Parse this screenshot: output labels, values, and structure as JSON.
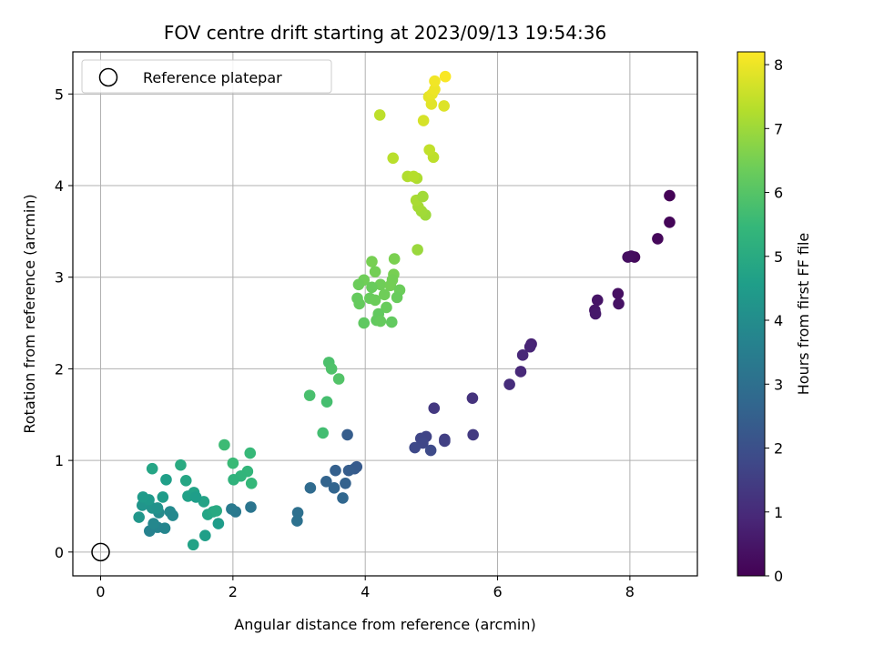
{
  "chart_data": {
    "type": "scatter",
    "title": "FOV centre drift starting at 2023/09/13 19:54:36",
    "xlabel": "Angular distance from reference (arcmin)",
    "ylabel": "Rotation from reference (arcmin)",
    "xlim": [
      -0.42,
      9.02
    ],
    "ylim": [
      -0.26,
      5.46
    ],
    "xticks": [
      0,
      2,
      4,
      6,
      8
    ],
    "yticks": [
      0,
      1,
      2,
      3,
      4,
      5
    ],
    "grid": true,
    "legend": {
      "position": "top-left",
      "entries": [
        "Reference platepar"
      ]
    },
    "reference_point": {
      "x": 0,
      "y": 0,
      "label": "Reference platepar"
    },
    "colorbar": {
      "label": "Hours from first FF file",
      "colormap": "viridis",
      "range": [
        0,
        8.2
      ],
      "ticks": [
        0,
        1,
        2,
        3,
        4,
        5,
        6,
        7,
        8
      ]
    },
    "points": [
      {
        "x": 8.6,
        "y": 3.89,
        "c": 0.05
      },
      {
        "x": 8.6,
        "y": 3.6,
        "c": 0.1
      },
      {
        "x": 8.42,
        "y": 3.42,
        "c": 0.15
      },
      {
        "x": 8.07,
        "y": 3.22,
        "c": 0.2
      },
      {
        "x": 8.02,
        "y": 3.23,
        "c": 0.25
      },
      {
        "x": 7.97,
        "y": 3.22,
        "c": 0.3
      },
      {
        "x": 7.82,
        "y": 2.82,
        "c": 0.35
      },
      {
        "x": 7.83,
        "y": 2.71,
        "c": 0.4
      },
      {
        "x": 7.51,
        "y": 2.75,
        "c": 0.45
      },
      {
        "x": 7.47,
        "y": 2.64,
        "c": 0.5
      },
      {
        "x": 7.48,
        "y": 2.6,
        "c": 0.55
      },
      {
        "x": 6.51,
        "y": 2.27,
        "c": 0.8
      },
      {
        "x": 6.49,
        "y": 2.24,
        "c": 0.85
      },
      {
        "x": 6.38,
        "y": 2.15,
        "c": 0.9
      },
      {
        "x": 6.35,
        "y": 1.97,
        "c": 0.95
      },
      {
        "x": 6.18,
        "y": 1.83,
        "c": 1.05
      },
      {
        "x": 5.62,
        "y": 1.68,
        "c": 1.2
      },
      {
        "x": 5.04,
        "y": 1.57,
        "c": 1.35
      },
      {
        "x": 5.63,
        "y": 1.28,
        "c": 1.4
      },
      {
        "x": 5.2,
        "y": 1.23,
        "c": 1.5
      },
      {
        "x": 5.2,
        "y": 1.21,
        "c": 1.55
      },
      {
        "x": 4.92,
        "y": 1.26,
        "c": 1.65
      },
      {
        "x": 4.84,
        "y": 1.24,
        "c": 1.7
      },
      {
        "x": 4.87,
        "y": 1.19,
        "c": 1.75
      },
      {
        "x": 4.75,
        "y": 1.14,
        "c": 1.8
      },
      {
        "x": 4.99,
        "y": 1.11,
        "c": 1.85
      },
      {
        "x": 3.73,
        "y": 1.28,
        "c": 2.4
      },
      {
        "x": 3.87,
        "y": 0.93,
        "c": 2.3
      },
      {
        "x": 3.84,
        "y": 0.91,
        "c": 2.35
      },
      {
        "x": 3.75,
        "y": 0.89,
        "c": 2.4
      },
      {
        "x": 3.55,
        "y": 0.89,
        "c": 2.5
      },
      {
        "x": 3.7,
        "y": 0.75,
        "c": 2.55
      },
      {
        "x": 3.41,
        "y": 0.77,
        "c": 2.6
      },
      {
        "x": 3.53,
        "y": 0.7,
        "c": 2.65
      },
      {
        "x": 3.66,
        "y": 0.59,
        "c": 2.7
      },
      {
        "x": 3.17,
        "y": 0.7,
        "c": 2.85
      },
      {
        "x": 2.98,
        "y": 0.43,
        "c": 3.0
      },
      {
        "x": 2.97,
        "y": 0.34,
        "c": 3.05
      },
      {
        "x": 2.27,
        "y": 0.49,
        "c": 3.2
      },
      {
        "x": 2.04,
        "y": 0.44,
        "c": 3.3
      },
      {
        "x": 1.98,
        "y": 0.47,
        "c": 3.35
      },
      {
        "x": 1.4,
        "y": 0.08,
        "c": 4.7
      },
      {
        "x": 1.58,
        "y": 0.18,
        "c": 4.6
      },
      {
        "x": 1.78,
        "y": 0.31,
        "c": 4.5
      },
      {
        "x": 1.62,
        "y": 0.41,
        "c": 4.8
      },
      {
        "x": 1.7,
        "y": 0.44,
        "c": 4.9
      },
      {
        "x": 1.75,
        "y": 0.45,
        "c": 4.95
      },
      {
        "x": 1.56,
        "y": 0.55,
        "c": 4.75
      },
      {
        "x": 1.41,
        "y": 0.65,
        "c": 4.7
      },
      {
        "x": 1.32,
        "y": 0.61,
        "c": 4.65
      },
      {
        "x": 1.44,
        "y": 0.6,
        "c": 4.55
      },
      {
        "x": 1.29,
        "y": 0.78,
        "c": 4.85
      },
      {
        "x": 1.21,
        "y": 0.95,
        "c": 5.0
      },
      {
        "x": 0.97,
        "y": 0.26,
        "c": 3.75
      },
      {
        "x": 0.86,
        "y": 0.27,
        "c": 3.7
      },
      {
        "x": 0.74,
        "y": 0.23,
        "c": 3.65
      },
      {
        "x": 0.8,
        "y": 0.31,
        "c": 3.8
      },
      {
        "x": 0.88,
        "y": 0.43,
        "c": 3.95
      },
      {
        "x": 1.05,
        "y": 0.44,
        "c": 3.9
      },
      {
        "x": 1.09,
        "y": 0.4,
        "c": 3.85
      },
      {
        "x": 0.58,
        "y": 0.38,
        "c": 4.3
      },
      {
        "x": 0.63,
        "y": 0.51,
        "c": 4.25
      },
      {
        "x": 0.78,
        "y": 0.48,
        "c": 4.2
      },
      {
        "x": 0.86,
        "y": 0.48,
        "c": 4.15
      },
      {
        "x": 0.73,
        "y": 0.57,
        "c": 4.4
      },
      {
        "x": 0.64,
        "y": 0.6,
        "c": 4.45
      },
      {
        "x": 0.94,
        "y": 0.6,
        "c": 4.5
      },
      {
        "x": 0.99,
        "y": 0.79,
        "c": 4.6
      },
      {
        "x": 0.78,
        "y": 0.91,
        "c": 4.8
      },
      {
        "x": 2.26,
        "y": 1.08,
        "c": 5.5
      },
      {
        "x": 2.28,
        "y": 0.75,
        "c": 5.45
      },
      {
        "x": 2.22,
        "y": 0.88,
        "c": 5.4
      },
      {
        "x": 2.12,
        "y": 0.83,
        "c": 5.35
      },
      {
        "x": 2.01,
        "y": 0.79,
        "c": 5.3
      },
      {
        "x": 2.0,
        "y": 0.97,
        "c": 5.55
      },
      {
        "x": 1.87,
        "y": 1.17,
        "c": 5.6
      },
      {
        "x": 3.45,
        "y": 2.07,
        "c": 5.85
      },
      {
        "x": 3.49,
        "y": 2.0,
        "c": 5.9
      },
      {
        "x": 3.6,
        "y": 1.89,
        "c": 5.95
      },
      {
        "x": 3.16,
        "y": 1.71,
        "c": 5.8
      },
      {
        "x": 3.42,
        "y": 1.64,
        "c": 5.75
      },
      {
        "x": 3.36,
        "y": 1.3,
        "c": 5.7
      },
      {
        "x": 4.1,
        "y": 3.17,
        "c": 6.5
      },
      {
        "x": 4.44,
        "y": 3.2,
        "c": 6.55
      },
      {
        "x": 4.15,
        "y": 3.06,
        "c": 6.45
      },
      {
        "x": 4.43,
        "y": 3.03,
        "c": 6.5
      },
      {
        "x": 4.41,
        "y": 2.97,
        "c": 6.45
      },
      {
        "x": 3.98,
        "y": 2.97,
        "c": 6.4
      },
      {
        "x": 3.9,
        "y": 2.92,
        "c": 6.35
      },
      {
        "x": 4.23,
        "y": 2.92,
        "c": 6.4
      },
      {
        "x": 4.38,
        "y": 2.91,
        "c": 6.45
      },
      {
        "x": 4.1,
        "y": 2.89,
        "c": 6.3
      },
      {
        "x": 4.52,
        "y": 2.86,
        "c": 6.35
      },
      {
        "x": 4.29,
        "y": 2.81,
        "c": 6.4
      },
      {
        "x": 4.48,
        "y": 2.78,
        "c": 6.3
      },
      {
        "x": 3.88,
        "y": 2.77,
        "c": 6.25
      },
      {
        "x": 4.07,
        "y": 2.77,
        "c": 6.3
      },
      {
        "x": 4.15,
        "y": 2.75,
        "c": 6.35
      },
      {
        "x": 3.91,
        "y": 2.71,
        "c": 6.25
      },
      {
        "x": 4.32,
        "y": 2.67,
        "c": 6.3
      },
      {
        "x": 4.2,
        "y": 2.6,
        "c": 6.2
      },
      {
        "x": 4.17,
        "y": 2.53,
        "c": 6.2
      },
      {
        "x": 4.23,
        "y": 2.52,
        "c": 6.25
      },
      {
        "x": 3.98,
        "y": 2.5,
        "c": 6.15
      },
      {
        "x": 4.4,
        "y": 2.51,
        "c": 6.2
      },
      {
        "x": 4.79,
        "y": 3.3,
        "c": 6.95
      },
      {
        "x": 4.91,
        "y": 3.68,
        "c": 7.0
      },
      {
        "x": 4.85,
        "y": 3.72,
        "c": 7.05
      },
      {
        "x": 4.8,
        "y": 3.77,
        "c": 7.1
      },
      {
        "x": 4.77,
        "y": 3.84,
        "c": 7.15
      },
      {
        "x": 4.87,
        "y": 3.88,
        "c": 7.05
      },
      {
        "x": 4.78,
        "y": 4.08,
        "c": 7.2
      },
      {
        "x": 4.64,
        "y": 4.1,
        "c": 7.25
      },
      {
        "x": 4.73,
        "y": 4.1,
        "c": 7.3
      },
      {
        "x": 4.42,
        "y": 4.3,
        "c": 7.35
      },
      {
        "x": 5.03,
        "y": 4.31,
        "c": 7.4
      },
      {
        "x": 4.97,
        "y": 4.39,
        "c": 7.45
      },
      {
        "x": 4.22,
        "y": 4.77,
        "c": 7.4
      },
      {
        "x": 4.88,
        "y": 4.71,
        "c": 7.7
      },
      {
        "x": 5.19,
        "y": 4.87,
        "c": 7.8
      },
      {
        "x": 5.0,
        "y": 4.89,
        "c": 7.85
      },
      {
        "x": 4.96,
        "y": 4.97,
        "c": 7.9
      },
      {
        "x": 5.01,
        "y": 5.0,
        "c": 7.95
      },
      {
        "x": 5.05,
        "y": 5.05,
        "c": 8.0
      },
      {
        "x": 5.05,
        "y": 5.14,
        "c": 8.05
      },
      {
        "x": 5.21,
        "y": 5.19,
        "c": 8.15
      }
    ]
  }
}
